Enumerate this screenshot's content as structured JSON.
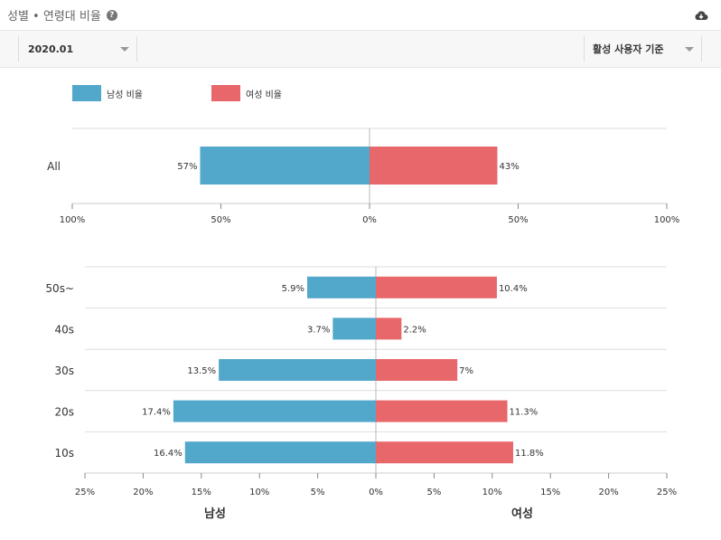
{
  "header": {
    "title": "성별 • 연령대 비율",
    "help_icon": "question-circle-icon",
    "download_icon": "cloud-download-icon"
  },
  "filters": {
    "period": "2020.01",
    "basis": "활성 사용자 기준"
  },
  "colors": {
    "male": "#52a8cb",
    "female": "#e8676b"
  },
  "chart_data": [
    {
      "type": "bar",
      "orientation": "horizontal-diverging",
      "categories": [
        "All"
      ],
      "series": [
        {
          "name": "남성 비율",
          "values": [
            57
          ]
        },
        {
          "name": "여성 비율",
          "values": [
            43
          ]
        }
      ],
      "data_labels": {
        "male": [
          "57%"
        ],
        "female": [
          "43%"
        ]
      },
      "xlim": [
        -100,
        100
      ],
      "x_ticks": [
        "100%",
        "50%",
        "0%",
        "50%",
        "100%"
      ],
      "legend": [
        "남성 비율",
        "여성 비율"
      ],
      "legend_position": "top-left"
    },
    {
      "type": "bar",
      "orientation": "horizontal-diverging",
      "categories": [
        "50s~",
        "40s",
        "30s",
        "20s",
        "10s"
      ],
      "series": [
        {
          "name": "남성",
          "values": [
            5.9,
            3.7,
            13.5,
            17.4,
            16.4
          ]
        },
        {
          "name": "여성",
          "values": [
            10.4,
            2.2,
            7,
            11.3,
            11.8
          ]
        }
      ],
      "data_labels": {
        "male": [
          "5.9%",
          "3.7%",
          "13.5%",
          "17.4%",
          "16.4%"
        ],
        "female": [
          "10.4%",
          "2.2%",
          "7%",
          "11.3%",
          "11.8%"
        ]
      },
      "xlim": [
        -25,
        25
      ],
      "x_ticks": [
        "25%",
        "20%",
        "15%",
        "10%",
        "5%",
        "0%",
        "5%",
        "10%",
        "15%",
        "20%",
        "25%"
      ],
      "xlabel_left": "남성",
      "xlabel_right": "여성"
    }
  ]
}
